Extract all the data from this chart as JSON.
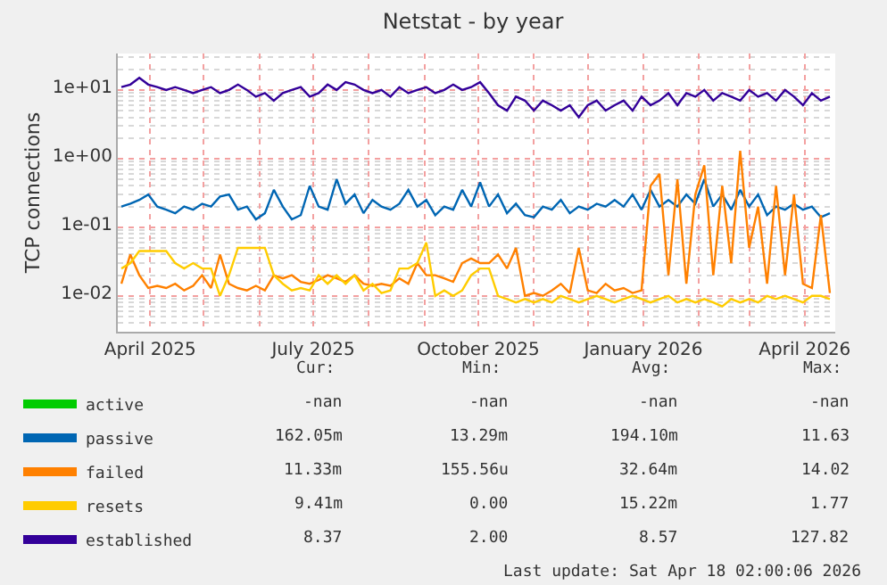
{
  "chart_data": {
    "type": "line",
    "title": "Netstat - by year",
    "ylabel": "TCP connections",
    "log": true,
    "grid": true,
    "legend": "bottom left",
    "marker": "none",
    "line_style": "solid",
    "xlim": [
      "2025-03-14",
      "2026-04-18"
    ],
    "xticks": [
      {
        "value": "2025-04-01",
        "label": "April 2025"
      },
      {
        "value": "2025-05-01",
        "label": null
      },
      {
        "value": "2025-06-01",
        "label": null
      },
      {
        "value": "2025-07-01",
        "label": "July 2025"
      },
      {
        "value": "2025-08-01",
        "label": null
      },
      {
        "value": "2025-09-01",
        "label": null
      },
      {
        "value": "2025-10-01",
        "label": "October 2025"
      },
      {
        "value": "2025-11-01",
        "label": null
      },
      {
        "value": "2025-12-01",
        "label": null
      },
      {
        "value": "2026-01-01",
        "label": "January 2026"
      },
      {
        "value": "2026-02-01",
        "label": null
      },
      {
        "value": "2026-03-01",
        "label": null
      },
      {
        "value": "2026-04-01",
        "label": "April 2026"
      }
    ],
    "ylim": [
      0.003,
      34
    ],
    "yticks": [
      {
        "value": 0.01,
        "label": "1e-02"
      },
      {
        "value": 0.1,
        "label": "1e-01"
      },
      {
        "value": 1,
        "label": "1e+00"
      },
      {
        "value": 10,
        "label": "1e+01"
      }
    ],
    "x": [
      "2025-03-16",
      "2025-03-21",
      "2025-03-26",
      "2025-03-31",
      "2025-04-05",
      "2025-04-10",
      "2025-04-15",
      "2025-04-20",
      "2025-04-25",
      "2025-04-30",
      "2025-05-05",
      "2025-05-10",
      "2025-05-15",
      "2025-05-20",
      "2025-05-25",
      "2025-05-30",
      "2025-06-04",
      "2025-06-09",
      "2025-06-14",
      "2025-06-19",
      "2025-06-24",
      "2025-06-29",
      "2025-07-04",
      "2025-07-09",
      "2025-07-14",
      "2025-07-19",
      "2025-07-24",
      "2025-07-29",
      "2025-08-03",
      "2025-08-08",
      "2025-08-13",
      "2025-08-18",
      "2025-08-23",
      "2025-08-28",
      "2025-09-02",
      "2025-09-07",
      "2025-09-12",
      "2025-09-17",
      "2025-09-22",
      "2025-09-27",
      "2025-10-02",
      "2025-10-07",
      "2025-10-12",
      "2025-10-17",
      "2025-10-22",
      "2025-10-27",
      "2025-11-01",
      "2025-11-06",
      "2025-11-11",
      "2025-11-16",
      "2025-11-21",
      "2025-11-26",
      "2025-12-01",
      "2025-12-06",
      "2025-12-11",
      "2025-12-16",
      "2025-12-21",
      "2025-12-26",
      "2025-12-31",
      "2026-01-05",
      "2026-01-10",
      "2026-01-15",
      "2026-01-20",
      "2026-01-25",
      "2026-01-30",
      "2026-02-04",
      "2026-02-09",
      "2026-02-14",
      "2026-02-19",
      "2026-02-24",
      "2026-03-01",
      "2026-03-06",
      "2026-03-11",
      "2026-03-16",
      "2026-03-21",
      "2026-03-26",
      "2026-03-31",
      "2026-04-05",
      "2026-04-10",
      "2026-04-15"
    ],
    "series": [
      {
        "name": "active",
        "color": "#00cc00",
        "values": [
          null,
          null,
          null,
          null,
          null,
          null,
          null,
          null,
          null,
          null,
          null,
          null,
          null,
          null,
          null,
          null,
          null,
          null,
          null,
          null,
          null,
          null,
          null,
          null,
          null,
          null,
          null,
          null,
          null,
          null,
          null,
          null,
          null,
          null,
          null,
          null,
          null,
          null,
          null,
          null,
          null,
          null,
          null,
          null,
          null,
          null,
          null,
          null,
          null,
          null,
          null,
          null,
          null,
          null,
          null,
          null,
          null,
          null,
          null,
          null,
          null,
          null,
          null,
          null,
          null,
          null,
          null,
          null,
          null,
          null,
          null,
          null,
          null,
          null,
          null,
          null,
          null,
          null,
          null,
          null
        ]
      },
      {
        "name": "passive",
        "color": "#0066b3",
        "values": [
          0.2,
          0.22,
          0.25,
          0.3,
          0.2,
          0.18,
          0.16,
          0.2,
          0.18,
          0.22,
          0.2,
          0.28,
          0.3,
          0.18,
          0.2,
          0.13,
          0.16,
          0.35,
          0.2,
          0.13,
          0.15,
          0.4,
          0.2,
          0.18,
          0.5,
          0.22,
          0.3,
          0.16,
          0.25,
          0.2,
          0.18,
          0.22,
          0.35,
          0.2,
          0.25,
          0.15,
          0.2,
          0.18,
          0.35,
          0.2,
          0.45,
          0.2,
          0.3,
          0.16,
          0.22,
          0.15,
          0.14,
          0.2,
          0.18,
          0.25,
          0.16,
          0.2,
          0.18,
          0.22,
          0.2,
          0.25,
          0.2,
          0.3,
          0.18,
          0.35,
          0.2,
          0.25,
          0.2,
          0.3,
          0.22,
          0.5,
          0.2,
          0.3,
          0.18,
          0.35,
          0.2,
          0.3,
          0.15,
          0.2,
          0.18,
          0.22,
          0.18,
          0.2,
          0.14,
          0.16
        ]
      },
      {
        "name": "failed",
        "color": "#ff8000",
        "values": [
          0.015,
          0.04,
          0.02,
          0.013,
          0.014,
          0.013,
          0.015,
          0.012,
          0.014,
          0.02,
          0.013,
          0.04,
          0.015,
          0.013,
          0.012,
          0.014,
          0.012,
          0.02,
          0.018,
          0.02,
          0.016,
          0.015,
          0.017,
          0.02,
          0.018,
          0.016,
          0.02,
          0.015,
          0.014,
          0.015,
          0.014,
          0.018,
          0.015,
          0.03,
          0.02,
          0.02,
          0.018,
          0.016,
          0.03,
          0.035,
          0.03,
          0.03,
          0.04,
          0.025,
          0.05,
          0.01,
          0.011,
          0.01,
          0.012,
          0.015,
          0.011,
          0.05,
          0.012,
          0.011,
          0.015,
          0.012,
          0.013,
          0.011,
          0.012,
          0.4,
          0.6,
          0.02,
          0.5,
          0.015,
          0.3,
          0.8,
          0.02,
          0.4,
          0.03,
          1.3,
          0.05,
          0.2,
          0.015,
          0.4,
          0.02,
          0.3,
          0.015,
          0.013,
          0.15,
          0.011
        ]
      },
      {
        "name": "resets",
        "color": "#ffcc00",
        "values": [
          0.025,
          0.03,
          0.045,
          0.045,
          0.045,
          0.045,
          0.03,
          0.025,
          0.03,
          0.025,
          0.025,
          0.01,
          0.02,
          0.05,
          0.05,
          0.05,
          0.05,
          0.02,
          0.015,
          0.012,
          0.013,
          0.012,
          0.02,
          0.015,
          0.02,
          0.015,
          0.02,
          0.012,
          0.015,
          0.011,
          0.012,
          0.025,
          0.025,
          0.03,
          0.06,
          0.01,
          0.012,
          0.01,
          0.012,
          0.02,
          0.025,
          0.025,
          0.01,
          0.009,
          0.008,
          0.009,
          0.008,
          0.009,
          0.008,
          0.01,
          0.009,
          0.008,
          0.009,
          0.01,
          0.009,
          0.008,
          0.009,
          0.01,
          0.009,
          0.008,
          0.009,
          0.01,
          0.008,
          0.009,
          0.008,
          0.009,
          0.008,
          0.007,
          0.009,
          0.008,
          0.009,
          0.008,
          0.01,
          0.009,
          0.01,
          0.009,
          0.008,
          0.01,
          0.01,
          0.009
        ]
      },
      {
        "name": "established",
        "color": "#330099",
        "values": [
          11,
          12,
          15,
          12,
          11,
          10,
          11,
          10,
          9,
          10,
          11,
          9,
          10,
          12,
          10,
          8,
          9,
          7,
          9,
          10,
          11,
          8,
          9,
          12,
          10,
          13,
          12,
          10,
          9,
          10,
          8,
          11,
          9,
          10,
          11,
          9,
          10,
          12,
          10,
          11,
          13,
          9,
          6,
          5,
          8,
          7,
          5,
          7,
          6,
          5,
          6,
          4,
          6,
          7,
          5,
          6,
          7,
          5,
          8,
          6,
          7,
          9,
          6,
          9,
          8,
          10,
          7,
          9,
          8,
          7,
          10,
          8,
          9,
          7,
          10,
          8,
          6,
          9,
          7,
          8
        ]
      }
    ],
    "annotations": [
      "Cur:",
      "Min:",
      "Avg:",
      "Max:",
      "-nan",
      "-nan",
      "-nan",
      "-nan",
      "162.05m",
      "13.29m",
      "194.10m",
      "11.63",
      "11.33m",
      "155.56u",
      "32.64m",
      "14.02",
      "9.41m",
      "0.00",
      "15.22m",
      "1.77",
      "8.37",
      "2.00",
      "8.57",
      "127.82",
      "Last update: Sat Apr 18 02:00:06 2026"
    ]
  }
}
